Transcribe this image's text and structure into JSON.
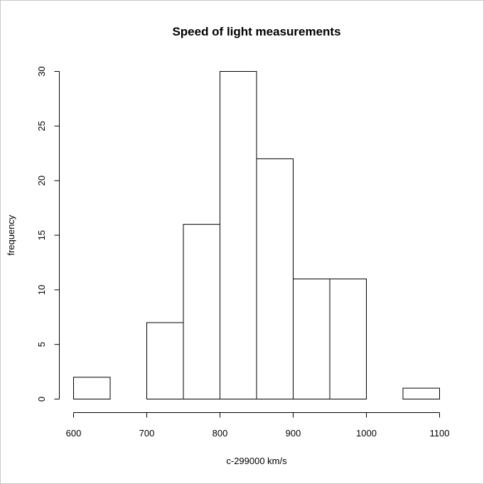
{
  "chart_data": {
    "type": "bar",
    "title": "Speed of light measurements",
    "xlabel": "c-299000 km/s",
    "ylabel": "frequency",
    "bins": [
      {
        "from": 600,
        "to": 650,
        "count": 2
      },
      {
        "from": 650,
        "to": 700,
        "count": 0
      },
      {
        "from": 700,
        "to": 750,
        "count": 7
      },
      {
        "from": 750,
        "to": 800,
        "count": 16
      },
      {
        "from": 800,
        "to": 850,
        "count": 30
      },
      {
        "from": 850,
        "to": 900,
        "count": 22
      },
      {
        "from": 900,
        "to": 950,
        "count": 11
      },
      {
        "from": 950,
        "to": 1000,
        "count": 11
      },
      {
        "from": 1000,
        "to": 1050,
        "count": 0
      },
      {
        "from": 1050,
        "to": 1100,
        "count": 1
      }
    ],
    "xlim": [
      600,
      1100
    ],
    "ylim": [
      0,
      30
    ],
    "x_ticks": [
      "600",
      "700",
      "800",
      "900",
      "1000",
      "1100"
    ],
    "y_ticks": [
      "0",
      "5",
      "10",
      "15",
      "20",
      "25",
      "30"
    ],
    "grid": false,
    "legend": "none"
  }
}
